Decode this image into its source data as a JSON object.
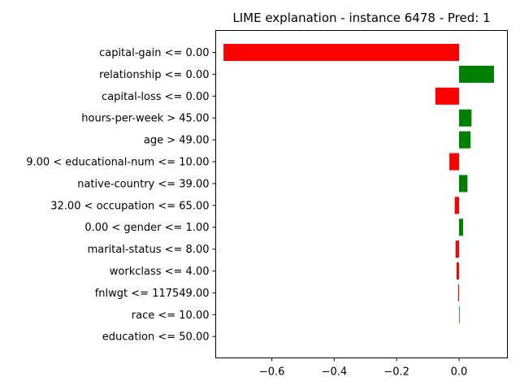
{
  "chart_data": {
    "type": "bar",
    "orientation": "horizontal",
    "title": "LIME explanation - instance 6478 - Pred: 1",
    "xlabel": "",
    "ylabel": "",
    "xlim": [
      -0.78,
      0.155
    ],
    "xticks": [
      -0.6,
      -0.4,
      -0.2,
      0.0
    ],
    "xtick_labels": [
      "−0.6",
      "−0.4",
      "−0.2",
      "0.0"
    ],
    "grid": false,
    "legend": "none",
    "colors": {
      "positive": "#008000",
      "negative": "#ff0000"
    },
    "categories": [
      "capital-gain <= 0.00",
      "relationship <= 0.00",
      "capital-loss <= 0.00",
      "hours-per-week > 45.00",
      "age > 49.00",
      "9.00 < educational-num <= 10.00",
      "native-country <= 39.00",
      "32.00 < occupation <= 65.00",
      "0.00 < gender <= 1.00",
      "marital-status <= 8.00",
      "workclass <= 4.00",
      "fnlwgt <= 117549.00",
      "race <= 10.00",
      "education <= 50.00"
    ],
    "values": [
      -0.755,
      0.112,
      -0.076,
      0.04,
      0.037,
      -0.031,
      0.027,
      -0.014,
      0.013,
      -0.011,
      -0.008,
      -0.003,
      0.002,
      0.0
    ]
  }
}
